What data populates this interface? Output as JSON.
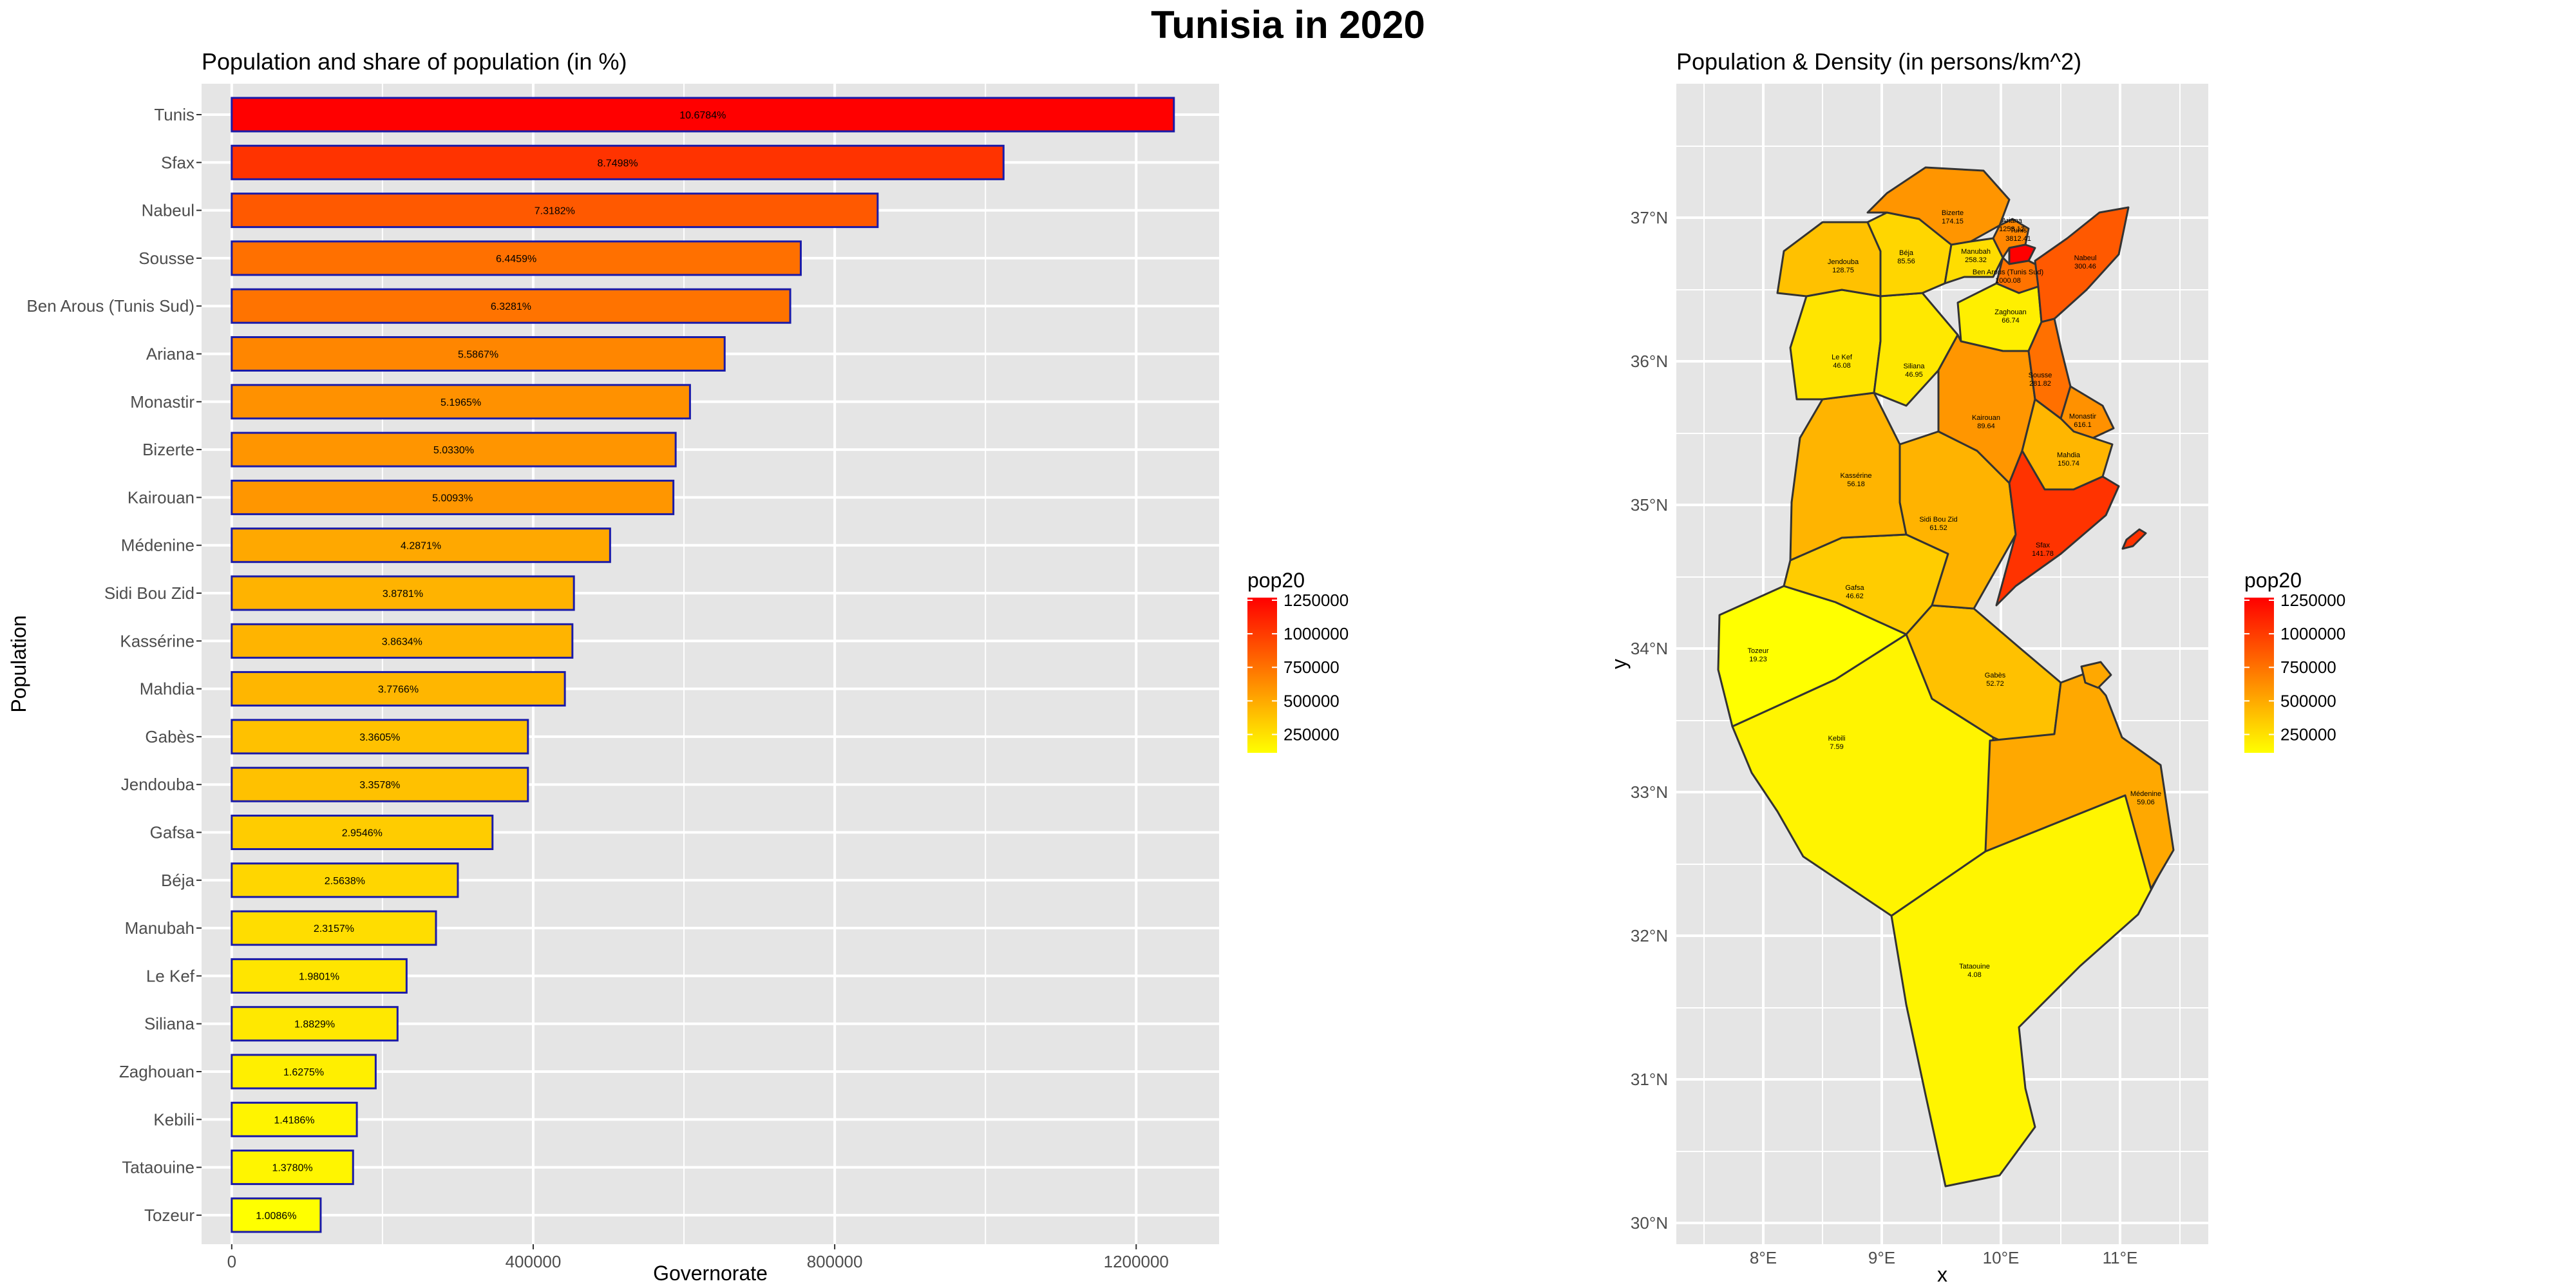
{
  "title": "Tunisia in 2020",
  "chart_data": [
    {
      "type": "bar",
      "orientation": "horizontal",
      "title": "Population and share of population (in %)",
      "xlabel": "Governorate",
      "ylabel": "Population",
      "xlim": [
        -40000,
        1310000
      ],
      "x_ticks": [
        0,
        400000,
        800000,
        1200000
      ],
      "grid": true,
      "fill_scale": "pop20",
      "categories": [
        "Tunis",
        "Sfax",
        "Nabeul",
        "Sousse",
        "Ben Arous (Tunis Sud)",
        "Ariana",
        "Monastir",
        "Bizerte",
        "Kairouan",
        "Médenine",
        "Sidi Bou Zid",
        "Kassérine",
        "Mahdia",
        "Gabès",
        "Jendouba",
        "Gafsa",
        "Béja",
        "Manubah",
        "Le Kef",
        "Siliana",
        "Zaghouan",
        "Kebili",
        "Tataouine",
        "Tozeur"
      ],
      "values": [
        1250000,
        1024000,
        857000,
        755000,
        741000,
        654000,
        608000,
        589000,
        586000,
        502000,
        454000,
        452000,
        442000,
        393000,
        393000,
        346000,
        300000,
        271000,
        232000,
        220000,
        191000,
        166000,
        161000,
        118000
      ],
      "labels": [
        "10.6784%",
        "8.7498%",
        "7.3182%",
        "6.4459%",
        "6.3281%",
        "5.5867%",
        "5.1965%",
        "5.0330%",
        "5.0093%",
        "4.2871%",
        "3.8781%",
        "3.8634%",
        "3.7766%",
        "3.3605%",
        "3.3578%",
        "2.9546%",
        "2.5638%",
        "2.3157%",
        "1.9801%",
        "1.8829%",
        "1.6275%",
        "1.4186%",
        "1.3780%",
        "1.0086%"
      ],
      "legend": {
        "title": "pop20",
        "position": "right",
        "range": [
          118000,
          1250000
        ],
        "ticks": [
          "1250000",
          "1000000",
          "750000",
          "500000",
          "250000"
        ],
        "tick_values": [
          1250000,
          1000000,
          750000,
          500000,
          250000
        ],
        "colors": [
          "#ffff00",
          "#ff0000"
        ]
      }
    },
    {
      "type": "map",
      "title": "Population & Density (in persons/km^2)",
      "xlabel": "x",
      "ylabel": "y",
      "x_ticks": [
        "8°E",
        "9°E",
        "10°E",
        "11°E"
      ],
      "y_ticks": [
        "37°N",
        "36°N",
        "35°N",
        "34°N",
        "33°N",
        "32°N",
        "31°N",
        "30°N"
      ],
      "fill_scale": "pop20",
      "regions": [
        {
          "name": "Bizerte",
          "density": "174.15",
          "pop": 589000
        },
        {
          "name": "Ariana",
          "density": "1253.12",
          "pop": 654000
        },
        {
          "name": "Tunis",
          "density": "3812.41",
          "pop": 1250000
        },
        {
          "name": "Béja",
          "density": "85.56",
          "pop": 300000
        },
        {
          "name": "Manubah",
          "density": "258.32",
          "pop": 271000
        },
        {
          "name": "Ben Arous (Tunis Sud)",
          "density": "1000.08",
          "pop": 741000
        },
        {
          "name": "Jendouba",
          "density": "128.75",
          "pop": 393000
        },
        {
          "name": "Nabeul",
          "density": "300.46",
          "pop": 857000
        },
        {
          "name": "Zaghouan",
          "density": "66.74",
          "pop": 191000
        },
        {
          "name": "Le Kef",
          "density": "46.08",
          "pop": 232000
        },
        {
          "name": "Siliana",
          "density": "46.95",
          "pop": 220000
        },
        {
          "name": "Sousse",
          "density": "281.82",
          "pop": 755000
        },
        {
          "name": "Kairouan",
          "density": "89.64",
          "pop": 586000
        },
        {
          "name": "Monastir",
          "density": "616.1",
          "pop": 608000
        },
        {
          "name": "Mahdia",
          "density": "150.74",
          "pop": 442000
        },
        {
          "name": "Kassérine",
          "density": "56.18",
          "pop": 452000
        },
        {
          "name": "Sidi Bou Zid",
          "density": "61.52",
          "pop": 454000
        },
        {
          "name": "Sfax",
          "density": "141.78",
          "pop": 1024000
        },
        {
          "name": "Gafsa",
          "density": "46.62",
          "pop": 346000
        },
        {
          "name": "Tozeur",
          "density": "19.23",
          "pop": 118000
        },
        {
          "name": "Gabès",
          "density": "52.72",
          "pop": 393000
        },
        {
          "name": "Kebili",
          "density": "7.59",
          "pop": 166000
        },
        {
          "name": "Médenine",
          "density": "59.06",
          "pop": 502000
        },
        {
          "name": "Tataouine",
          "density": "4.08",
          "pop": 161000
        }
      ],
      "legend": {
        "title": "pop20",
        "position": "right",
        "ticks": [
          "1250000",
          "1000000",
          "750000",
          "500000",
          "250000"
        ],
        "tick_values": [
          1250000,
          1000000,
          750000,
          500000,
          250000
        ],
        "colors": [
          "#ffff00",
          "#ff0000"
        ]
      }
    }
  ]
}
